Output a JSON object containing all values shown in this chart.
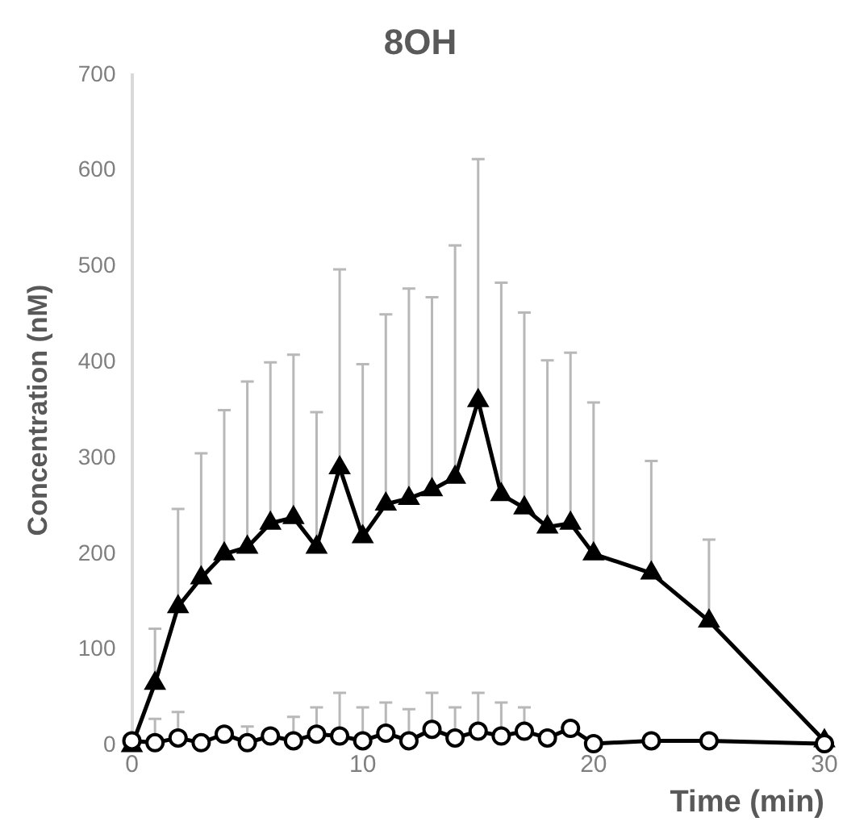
{
  "chart_data": {
    "type": "line",
    "title": "8OH",
    "xlabel": "Time (min)",
    "ylabel": "Concentration (nM)",
    "x": [
      0,
      1,
      2,
      3,
      4,
      5,
      6,
      7,
      8,
      9,
      10,
      11,
      12,
      13,
      14,
      15,
      16,
      17,
      18,
      19,
      20,
      22.5,
      25,
      30
    ],
    "xlim": [
      0,
      30
    ],
    "xticks": [
      0,
      10,
      20,
      30
    ],
    "ylim": [
      0,
      700
    ],
    "yticks": [
      0,
      100,
      200,
      300,
      400,
      500,
      600,
      700
    ],
    "grid": false,
    "legend": false,
    "line_style": "solid",
    "series": [
      {
        "color": "#000000",
        "marker": "triangle",
        "values": [
          0,
          65,
          145,
          175,
          200,
          207,
          232,
          238,
          207,
          290,
          218,
          252,
          258,
          267,
          280,
          360,
          262,
          248,
          228,
          232,
          200,
          180,
          130,
          5
        ],
        "errors": [
          null,
          [
            65,
            122
          ],
          [
            145,
            247
          ],
          [
            175,
            305
          ],
          [
            200,
            350
          ],
          [
            207,
            380
          ],
          [
            232,
            400
          ],
          [
            238,
            408
          ],
          [
            207,
            348
          ],
          [
            290,
            497
          ],
          [
            218,
            398
          ],
          [
            252,
            450
          ],
          [
            258,
            477
          ],
          [
            267,
            468
          ],
          [
            280,
            522
          ],
          [
            360,
            612
          ],
          [
            262,
            483
          ],
          [
            248,
            452
          ],
          [
            228,
            402
          ],
          [
            232,
            410
          ],
          [
            200,
            358
          ],
          [
            180,
            297
          ],
          [
            130,
            215
          ],
          null
        ]
      },
      {
        "color": "#000000",
        "marker": "circle",
        "values": [
          5,
          3,
          8,
          3,
          12,
          3,
          10,
          5,
          12,
          10,
          5,
          13,
          5,
          17,
          8,
          15,
          10,
          15,
          8,
          18,
          2,
          5,
          5,
          2
        ],
        "errors": [
          null,
          [
            3,
            28
          ],
          [
            8,
            35
          ],
          null,
          null,
          [
            3,
            20
          ],
          null,
          [
            5,
            30
          ],
          [
            12,
            40
          ],
          [
            10,
            55
          ],
          [
            5,
            40
          ],
          [
            13,
            45
          ],
          [
            5,
            38
          ],
          [
            17,
            55
          ],
          [
            8,
            40
          ],
          [
            15,
            55
          ],
          [
            10,
            45
          ],
          [
            15,
            40
          ],
          null,
          null,
          null,
          null,
          null,
          null
        ]
      }
    ]
  }
}
